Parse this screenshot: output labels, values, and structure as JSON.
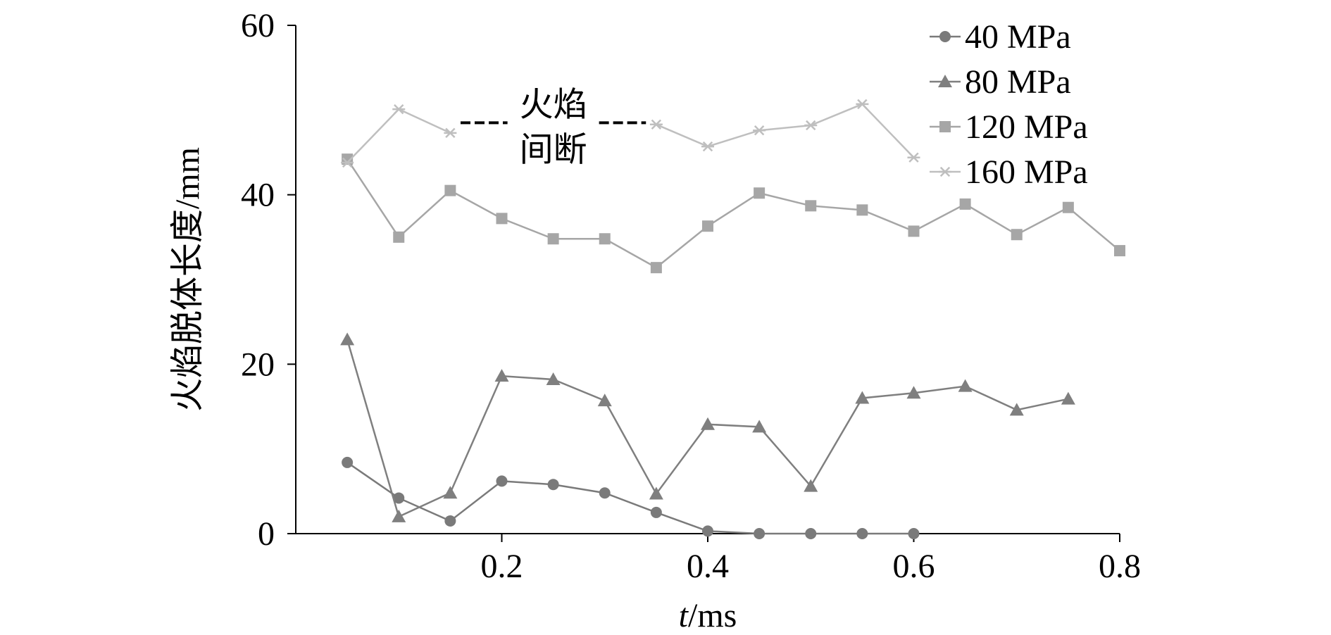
{
  "chart_data": {
    "type": "line",
    "xlabel": "t/ms",
    "ylabel": "火焰脱体长度/mm",
    "xlim": [
      0,
      0.8
    ],
    "ylim": [
      0,
      60
    ],
    "x_ticks": [
      "0.2",
      "0.4",
      "0.6",
      "0.8"
    ],
    "y_ticks": [
      "0",
      "20",
      "40",
      "60"
    ],
    "grid": false,
    "legend_position": "top-right",
    "series": [
      {
        "name": "40 MPa",
        "marker": "circle",
        "color": "#7a7a7a",
        "x": [
          0.05,
          0.1,
          0.15,
          0.2,
          0.25,
          0.3,
          0.35,
          0.4,
          0.45,
          0.5,
          0.55,
          0.6
        ],
        "values": [
          8.4,
          4.2,
          1.5,
          6.2,
          5.8,
          4.8,
          2.5,
          0.3,
          0.0,
          0.0,
          0.0,
          0.0
        ]
      },
      {
        "name": "80 MPa",
        "marker": "triangle",
        "color": "#7f7f7f",
        "x": [
          0.05,
          0.1,
          0.15,
          0.2,
          0.25,
          0.3,
          0.35,
          0.4,
          0.45,
          0.5,
          0.55,
          0.6,
          0.65,
          0.7,
          0.75
        ],
        "values": [
          22.9,
          2.0,
          4.8,
          18.6,
          18.2,
          15.7,
          4.7,
          12.9,
          12.6,
          5.6,
          16.0,
          16.6,
          17.4,
          14.6,
          15.9
        ]
      },
      {
        "name": "120 MPa",
        "marker": "square",
        "color": "#a6a6a6",
        "x": [
          0.05,
          0.1,
          0.15,
          0.2,
          0.25,
          0.3,
          0.35,
          0.4,
          0.45,
          0.5,
          0.55,
          0.6,
          0.65,
          0.7,
          0.75,
          0.8
        ],
        "values": [
          44.2,
          35.0,
          40.5,
          37.2,
          34.8,
          34.8,
          31.4,
          36.3,
          40.2,
          38.7,
          38.2,
          35.7,
          38.9,
          35.3,
          38.5,
          33.4
        ]
      },
      {
        "name": "160 MPa",
        "marker": "asterisk",
        "color": "#bfbfbf",
        "segments": [
          {
            "x": [
              0.05,
              0.1,
              0.15
            ],
            "values": [
              43.8,
              50.1,
              47.3
            ]
          },
          {
            "x": [
              0.35,
              0.4,
              0.45,
              0.5,
              0.55,
              0.6
            ],
            "values": [
              48.3,
              45.7,
              47.6,
              48.2,
              50.7,
              44.4
            ]
          }
        ]
      }
    ],
    "annotations": [
      {
        "lines": [
          "火焰",
          "间断"
        ],
        "x": 0.25,
        "y": 48.5,
        "dashes_to": [
          0.16,
          0.34
        ]
      }
    ]
  }
}
